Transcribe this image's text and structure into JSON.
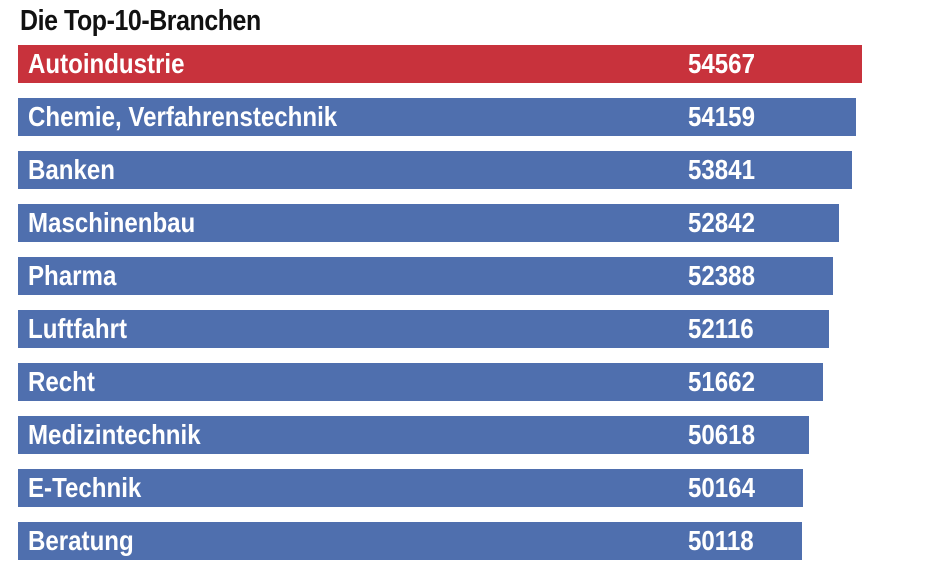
{
  "chart_data": {
    "type": "bar",
    "orientation": "horizontal",
    "title": "Die Top-10-Branchen",
    "categories": [
      "Autoindustrie",
      "Chemie, Verfahrenstechnik",
      "Banken",
      "Maschinenbau",
      "Pharma",
      "Luftfahrt",
      "Recht",
      "Medizintechnik",
      "E-Technik",
      "Beratung"
    ],
    "values": [
      54567,
      54159,
      53841,
      52842,
      52388,
      52116,
      51662,
      50618,
      50164,
      50118
    ],
    "value_labels": [
      "54567",
      "54159",
      "53841",
      "52842",
      "52388",
      "52116",
      "51662",
      "50618",
      "50164",
      "50118"
    ],
    "highlight_index": 0,
    "grid": false,
    "legend": "none"
  },
  "colors": {
    "highlight": "#C8323C",
    "bar": "#4F6FAE",
    "text_on_bar": "#FFFFFF",
    "title": "#111111"
  }
}
